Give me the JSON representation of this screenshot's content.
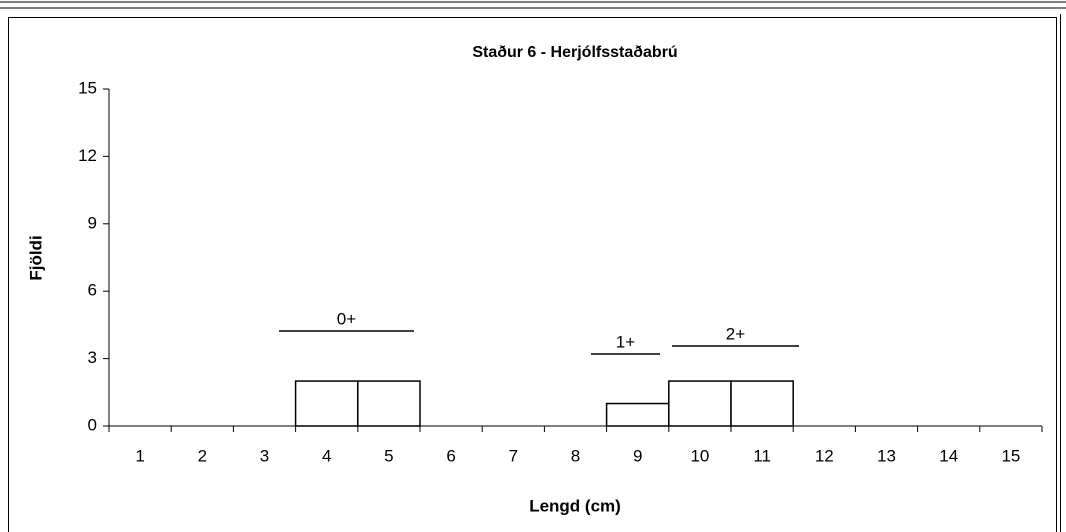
{
  "chart_data": {
    "type": "bar",
    "title": "Staður 6 - Herjólfsstaðabrú",
    "x_label": "Lengd (cm)",
    "y_label": "Fjöldi",
    "categories": [
      1,
      2,
      3,
      4,
      5,
      6,
      7,
      8,
      9,
      10,
      11,
      12,
      13,
      14,
      15
    ],
    "values": [
      0,
      0,
      0,
      2,
      2,
      0,
      0,
      0,
      1,
      2,
      2,
      0,
      0,
      0,
      0
    ],
    "color": "#ffffff",
    "ylim": [
      0,
      15
    ],
    "yticks": [
      0,
      3,
      6,
      9,
      12,
      15
    ],
    "annotations": [
      "0+",
      "1+",
      "2+"
    ]
  }
}
